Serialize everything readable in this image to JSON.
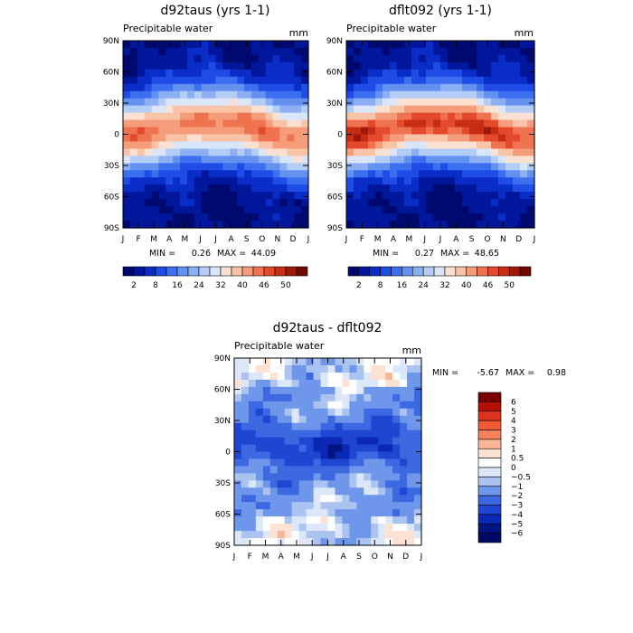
{
  "chart_data": [
    {
      "id": "p1",
      "type": "heatmap",
      "title": "d92taus (yrs 1-1)",
      "subtitle": "Precipitable water",
      "units": "mm",
      "y_ticks": [
        "90N",
        "60N",
        "30N",
        "0",
        "30S",
        "60S",
        "90S"
      ],
      "x_ticks": [
        "J",
        "F",
        "M",
        "A",
        "M",
        "J",
        "J",
        "A",
        "S",
        "O",
        "N",
        "D",
        "J"
      ],
      "min_label": "MIN =",
      "min": "0.26",
      "max_label": "MAX =",
      "max": "44.09",
      "field": "abs",
      "peak": 1.0,
      "colorbar_labels": [
        "2",
        "8",
        "16",
        "24",
        "32",
        "40",
        "46",
        "50"
      ]
    },
    {
      "id": "p2",
      "type": "heatmap",
      "title": "dflt092 (yrs 1-1)",
      "subtitle": "Precipitable water",
      "units": "mm",
      "y_ticks": [
        "90N",
        "60N",
        "30N",
        "0",
        "30S",
        "60S",
        "90S"
      ],
      "x_ticks": [
        "J",
        "F",
        "M",
        "A",
        "M",
        "J",
        "J",
        "A",
        "S",
        "O",
        "N",
        "D",
        "J"
      ],
      "min_label": "MIN =",
      "min": "0.27",
      "max_label": "MAX =",
      "max": "48.65",
      "field": "abs",
      "peak": 1.1,
      "colorbar_labels": [
        "2",
        "8",
        "16",
        "24",
        "32",
        "40",
        "46",
        "50"
      ]
    },
    {
      "id": "p3",
      "type": "heatmap",
      "title": "d92taus - dflt092",
      "subtitle": "Precipitable water",
      "units": "mm",
      "y_ticks": [
        "90N",
        "60N",
        "30N",
        "0",
        "30S",
        "60S",
        "90S"
      ],
      "x_ticks": [
        "J",
        "F",
        "M",
        "A",
        "M",
        "J",
        "J",
        "A",
        "S",
        "O",
        "N",
        "D",
        "J"
      ],
      "min_label": "MIN =",
      "min": "-5.67",
      "max_label": "MAX =",
      "max": "0.98",
      "field": "diff",
      "colorbar_labels": [
        "6",
        "5",
        "4",
        "3",
        "2",
        "1",
        "0.5",
        "0",
        "−0.5",
        "−1",
        "−2",
        "−3",
        "−4",
        "−5",
        "−6"
      ]
    }
  ],
  "colors": {
    "abs_palette": [
      "#000a6e",
      "#00169b",
      "#0a2dc8",
      "#1f4be6",
      "#3c6ef0",
      "#6391f0",
      "#8caff3",
      "#b4cdf7",
      "#d9e6fa",
      "#fbe1d3",
      "#f9c3a8",
      "#f59d7a",
      "#ef7350",
      "#e3492b",
      "#c82d14",
      "#a01808",
      "#6e0a00"
    ],
    "diff_palette": [
      "#780000",
      "#b40f00",
      "#dc321e",
      "#f05a32",
      "#f5825a",
      "#fab496",
      "#fde1d2",
      "#ffffff",
      "#dce8fa",
      "#aac3f0",
      "#6e96eb",
      "#3c69e1",
      "#1e46d2",
      "#0a28b4",
      "#001482",
      "#000a64"
    ]
  }
}
